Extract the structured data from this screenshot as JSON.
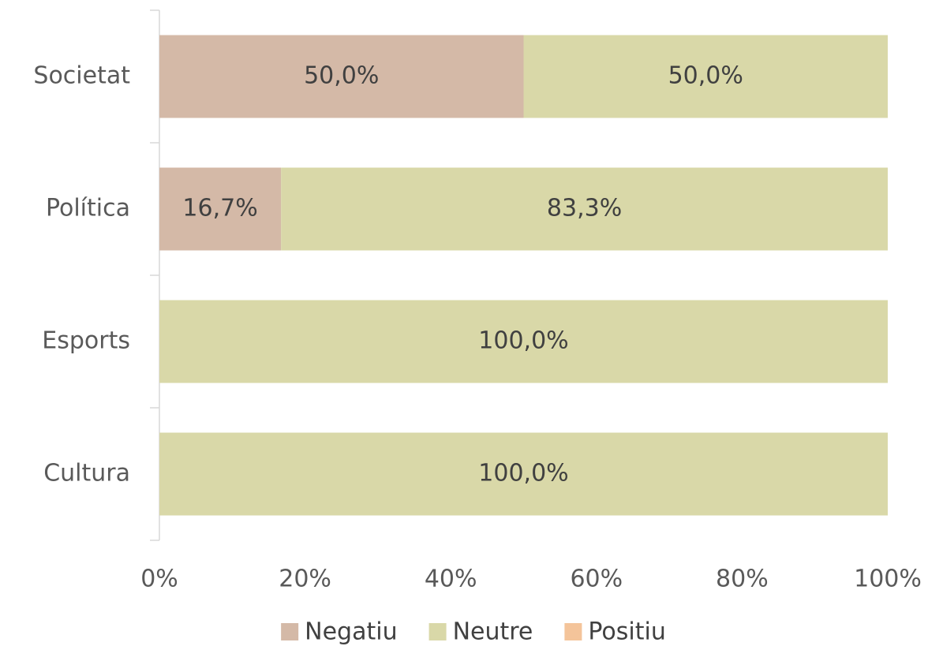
{
  "chart_data": {
    "type": "stacked-bar-horizontal",
    "categories": [
      "Societat",
      "Política",
      "Esports",
      "Cultura"
    ],
    "series": [
      {
        "name": "Negatiu",
        "color": "#d4b9a7",
        "values": [
          50,
          16.7,
          0,
          0
        ],
        "value_labels": [
          "50,0%",
          "16,7%",
          null,
          null
        ]
      },
      {
        "name": "Neutre",
        "color": "#d9d8a8",
        "values": [
          50,
          83.3,
          100,
          100
        ],
        "value_labels": [
          "50,0%",
          "83,3%",
          "100,0%",
          "100,0%"
        ]
      },
      {
        "name": "Positiu",
        "color": "#f4c49a",
        "values": [
          0,
          0,
          0,
          0
        ],
        "value_labels": [
          null,
          null,
          null,
          null
        ]
      }
    ],
    "xlim": [
      0,
      100
    ],
    "xticks": [
      {
        "value": 0,
        "label": "0%"
      },
      {
        "value": 20,
        "label": "20%"
      },
      {
        "value": 40,
        "label": "40%"
      },
      {
        "value": 60,
        "label": "60%"
      },
      {
        "value": 80,
        "label": "80%"
      },
      {
        "value": 100,
        "label": "100%"
      }
    ],
    "legend": "bottom"
  }
}
